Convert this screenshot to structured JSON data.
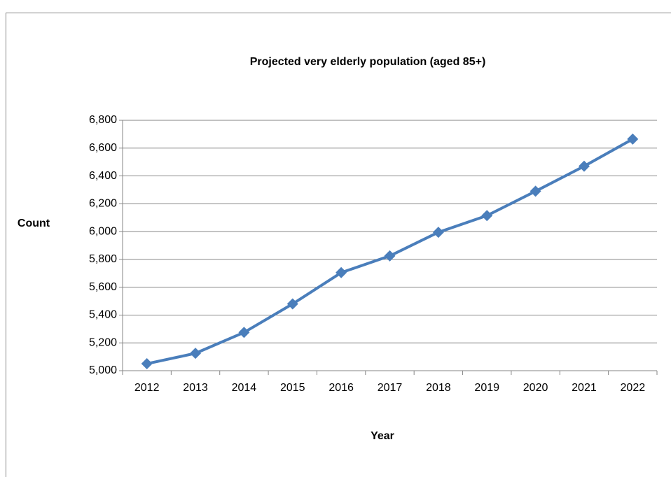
{
  "chart_data": {
    "type": "line",
    "title": "Projected very elderly population (aged 85+)",
    "x_label": "Year",
    "y_label": "Count",
    "categories": [
      "2012",
      "2013",
      "2014",
      "2015",
      "2016",
      "2017",
      "2018",
      "2019",
      "2020",
      "2021",
      "2022"
    ],
    "values": [
      5050,
      5125,
      5275,
      5480,
      5705,
      5825,
      5995,
      6115,
      6290,
      6470,
      6665
    ],
    "color": "#4a7ebb",
    "marker": "diamond",
    "ylim": [
      5000,
      6800
    ],
    "yticks": [
      {
        "value": 5000,
        "label": "5,000"
      },
      {
        "value": 5200,
        "label": "5,200"
      },
      {
        "value": 5400,
        "label": "5,400"
      },
      {
        "value": 5600,
        "label": "5,600"
      },
      {
        "value": 5800,
        "label": "5,800"
      },
      {
        "value": 6000,
        "label": "6,000"
      },
      {
        "value": 6200,
        "label": "6,200"
      },
      {
        "value": 6400,
        "label": "6,400"
      },
      {
        "value": 6600,
        "label": "6,600"
      },
      {
        "value": 6800,
        "label": "6,800"
      }
    ],
    "grid": true
  }
}
